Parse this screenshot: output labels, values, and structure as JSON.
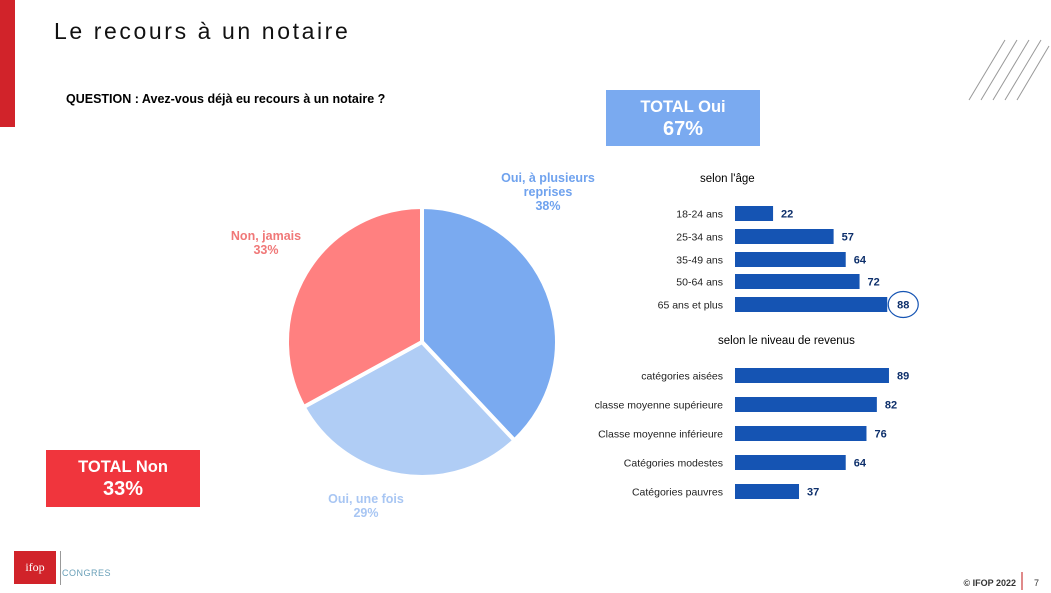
{
  "header": {
    "title": "Le recours à un notaire",
    "question": "QUESTION : Avez-vous déjà eu recours à un notaire ?"
  },
  "totals": {
    "oui_label": "TOTAL Oui",
    "oui_value": "67%",
    "non_label": "TOTAL Non",
    "non_value": "33%"
  },
  "pie_labels": {
    "plusieurs_line1": "Oui, à plusieurs",
    "plusieurs_line2": "reprises",
    "plusieurs_pct": "38%",
    "une_fois": "Oui, une fois",
    "une_fois_pct": "29%",
    "jamais": "Non, jamais",
    "jamais_pct": "33%"
  },
  "sections": {
    "age_title": "selon l'âge",
    "revenus_title": "selon le niveau de revenus"
  },
  "chart_data": [
    {
      "type": "pie",
      "slices": [
        {
          "label": "Oui, à plusieurs reprises",
          "value": 38,
          "color": "#7aaaf0"
        },
        {
          "label": "Oui, une fois",
          "value": 29,
          "color": "#b0cdf5"
        },
        {
          "label": "Non, jamais",
          "value": 33,
          "color": "#ff8080"
        }
      ]
    },
    {
      "type": "bar",
      "orientation": "horizontal",
      "title": "selon l'âge",
      "categories": [
        "18-24 ans",
        "25-34 ans",
        "35-49 ans",
        "50-64 ans",
        "65 ans et plus"
      ],
      "values": [
        22,
        57,
        64,
        72,
        88
      ],
      "highlight": "65 ans et plus",
      "color": "#1554b3"
    },
    {
      "type": "bar",
      "orientation": "horizontal",
      "title": "selon le niveau de revenus",
      "categories": [
        "catégories aisées",
        "classe moyenne supérieure",
        "Classe moyenne inférieure",
        "Catégories modestes",
        "Catégories pauvres"
      ],
      "values": [
        89,
        82,
        76,
        64,
        37
      ],
      "color": "#1554b3"
    }
  ],
  "footer": {
    "copyright": "© IFOP 2022",
    "page": "7",
    "logo_text": "ifop",
    "partner_text": "CONGRES"
  }
}
